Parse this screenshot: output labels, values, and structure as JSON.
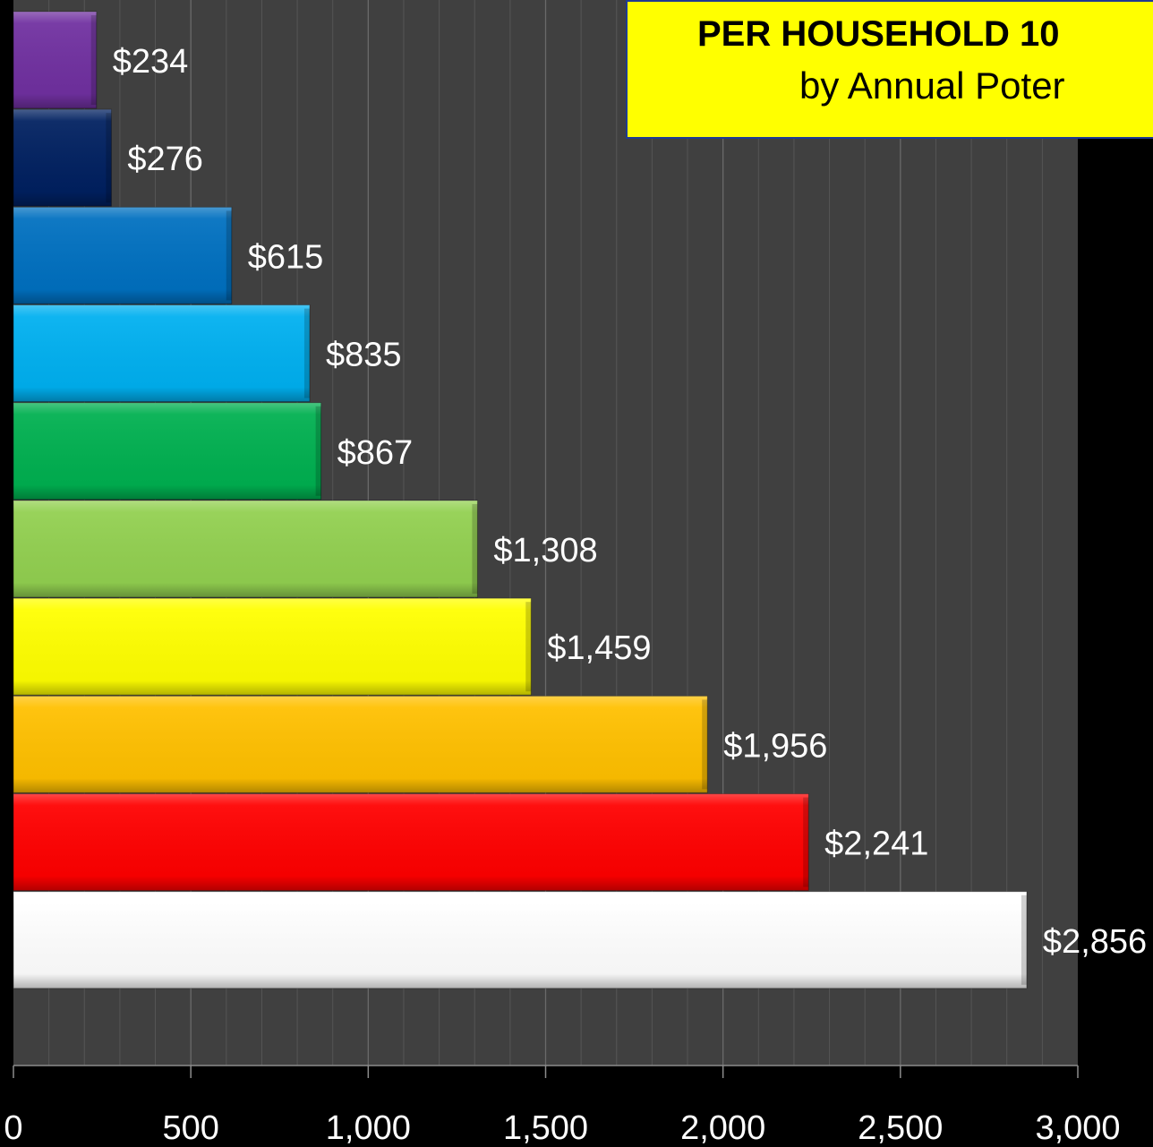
{
  "title": {
    "line1": "PER HOUSEHOLD 10",
    "line2": "by Annual Poter"
  },
  "chart_data": {
    "type": "bar",
    "orientation": "horizontal",
    "values": [
      234,
      276,
      615,
      835,
      867,
      1308,
      1459,
      1956,
      2241,
      2856
    ],
    "data_labels": [
      "$234",
      "$276",
      "$615",
      "$835",
      "$867",
      "$1,308",
      "$1,459",
      "$1,956",
      "$2,241",
      "$2,856"
    ],
    "bar_colors": [
      "#7030a0",
      "#002060",
      "#0070c0",
      "#00b0f0",
      "#00b050",
      "#92d050",
      "#ffff00",
      "#ffc000",
      "#ff0000",
      "#ffffff"
    ],
    "xlim": [
      0,
      3000
    ],
    "x_ticks": [
      0,
      500,
      1000,
      1500,
      2000,
      2500,
      3000
    ],
    "x_tick_labels": [
      "0",
      "500",
      "1,000",
      "1,500",
      "2,000",
      "2,500",
      "3,000"
    ],
    "plot_background": "#404040",
    "grid": true,
    "label_color": "#ffffff"
  }
}
